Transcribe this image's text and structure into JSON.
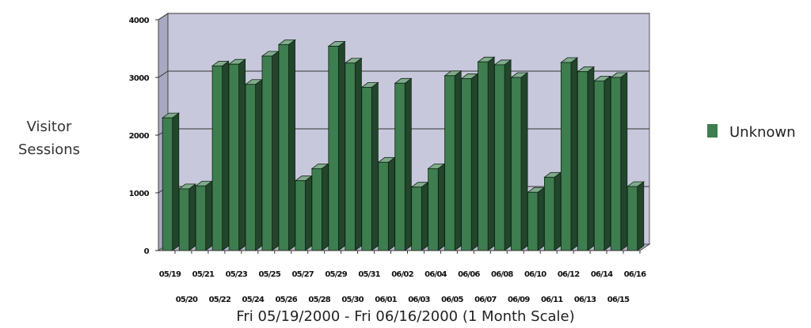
{
  "chart_data": {
    "type": "bar",
    "title": "",
    "ylabel_lines": [
      "Visitor",
      "Sessions"
    ],
    "xlabel": "Fri 05/19/2000 - Fri 06/16/2000 (1 Month Scale)",
    "ylim": [
      0,
      4000
    ],
    "yticks": [
      "0",
      "1000",
      "2000",
      "3000",
      "4000"
    ],
    "grid": true,
    "legend_position": "right",
    "categories": [
      "05/19",
      "05/20",
      "05/21",
      "05/22",
      "05/23",
      "05/24",
      "05/25",
      "05/26",
      "05/27",
      "05/28",
      "05/29",
      "05/30",
      "05/31",
      "06/01",
      "06/02",
      "06/03",
      "06/04",
      "06/05",
      "06/06",
      "06/07",
      "06/08",
      "06/09",
      "06/10",
      "06/11",
      "06/12",
      "06/13",
      "06/14",
      "06/15",
      "06/16"
    ],
    "series": [
      {
        "name": "Unknown",
        "color": "#3e7d4f",
        "values": [
          2300,
          1070,
          1120,
          3200,
          3230,
          2880,
          3370,
          3570,
          1210,
          1420,
          3540,
          3250,
          2830,
          1530,
          2900,
          1100,
          1420,
          3030,
          2980,
          3270,
          3220,
          3000,
          1010,
          1270,
          3260,
          3100,
          2940,
          3000,
          1110
        ]
      }
    ],
    "plot_background": "#c8c8dc"
  }
}
